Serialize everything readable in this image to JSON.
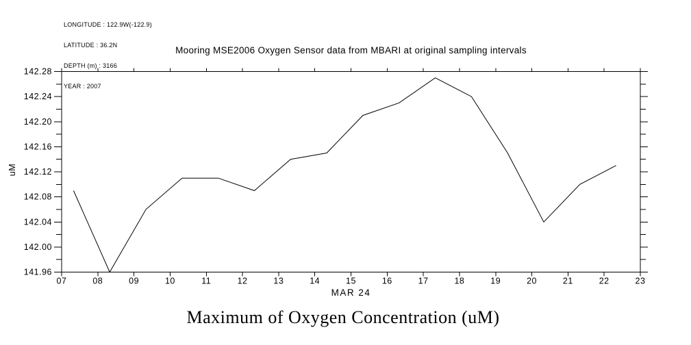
{
  "header": {
    "lines": [
      "LONGITUDE : 122.9W(-122.9)",
      "LATITUDE : 36.2N",
      "DEPTH (m) : 3166",
      "YEAR : 2007"
    ]
  },
  "chart_data": {
    "type": "line",
    "title": "Mooring MSE2006 Oxygen Sensor data from MBARI at original sampling intervals",
    "xlabel": "MAR 24",
    "ylabel": "uM",
    "xlim": [
      7,
      23
    ],
    "ylim": [
      141.96,
      142.28
    ],
    "x_ticks": [
      "07",
      "08",
      "09",
      "10",
      "11",
      "12",
      "13",
      "14",
      "15",
      "16",
      "17",
      "18",
      "19",
      "20",
      "21",
      "22",
      "23"
    ],
    "y_tick_labels": [
      "141.96",
      "142.00",
      "142.04",
      "142.08",
      "142.12",
      "142.16",
      "142.20",
      "142.24",
      "142.28"
    ],
    "y_major_step": 0.04,
    "y_minor_step": 0.02,
    "grid": false,
    "legend": "none",
    "line_color": "#000000",
    "background_color": "#ffffff",
    "series": [
      {
        "name": "Maximum of Oxygen Concentration",
        "x": [
          7.33,
          8.33,
          9.33,
          10.33,
          11.33,
          12.33,
          13.33,
          14.33,
          15.33,
          16.33,
          17.33,
          18.33,
          19.33,
          20.33,
          21.33,
          22.33
        ],
        "y": [
          142.09,
          141.96,
          142.06,
          142.11,
          142.11,
          142.09,
          142.14,
          142.15,
          142.21,
          142.23,
          142.27,
          142.24,
          142.15,
          142.04,
          142.1,
          142.13
        ]
      }
    ]
  },
  "footer": {
    "title": "Maximum of Oxygen Concentration (uM)"
  }
}
